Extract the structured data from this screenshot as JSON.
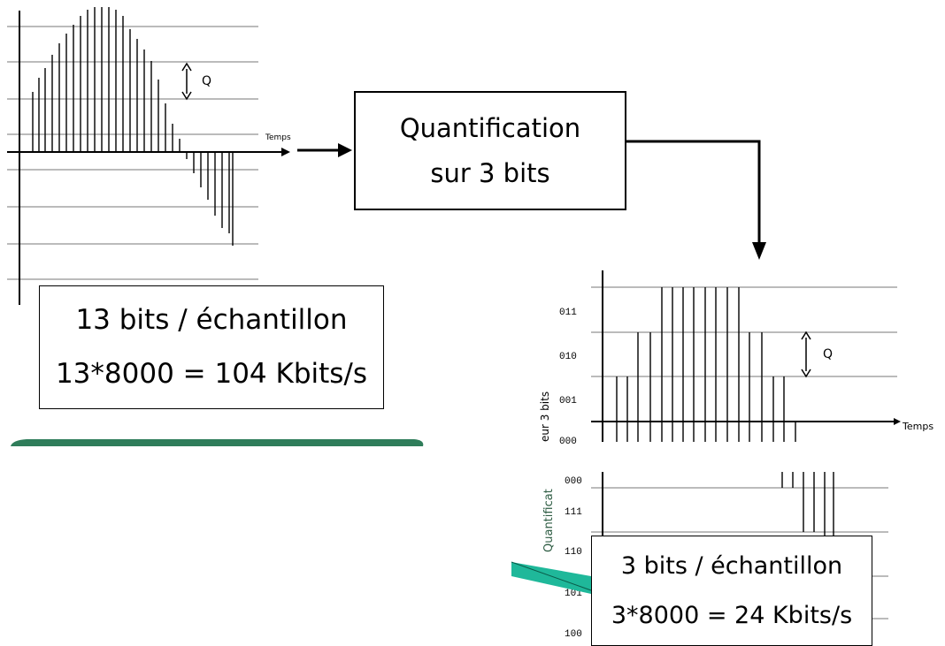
{
  "quantifier_box": {
    "line1": "Quantification",
    "line2": "sur 3 bits"
  },
  "left_plot": {
    "step_label": "Q",
    "time_label": "Temps"
  },
  "left_info": {
    "line1": "13 bits / échantillon",
    "line2": "13*8000 = 104 Kbits/s"
  },
  "right_plot": {
    "step_label": "Q",
    "time_label": "Temps",
    "side_label": "Quantificat",
    "side_label_top": "eur 3 bits",
    "levels_top": [
      "011",
      "010",
      "001",
      "000"
    ],
    "levels_bottom": [
      "000",
      "111",
      "110",
      "101",
      "100"
    ]
  },
  "right_info": {
    "line1": "3 bits / échantillon",
    "line2": "3*8000 = 24 Kbits/s"
  },
  "colors": {
    "ink": "#000000",
    "green_bar": "#2f7d5a",
    "teal_arrow": "#1fb89a"
  }
}
